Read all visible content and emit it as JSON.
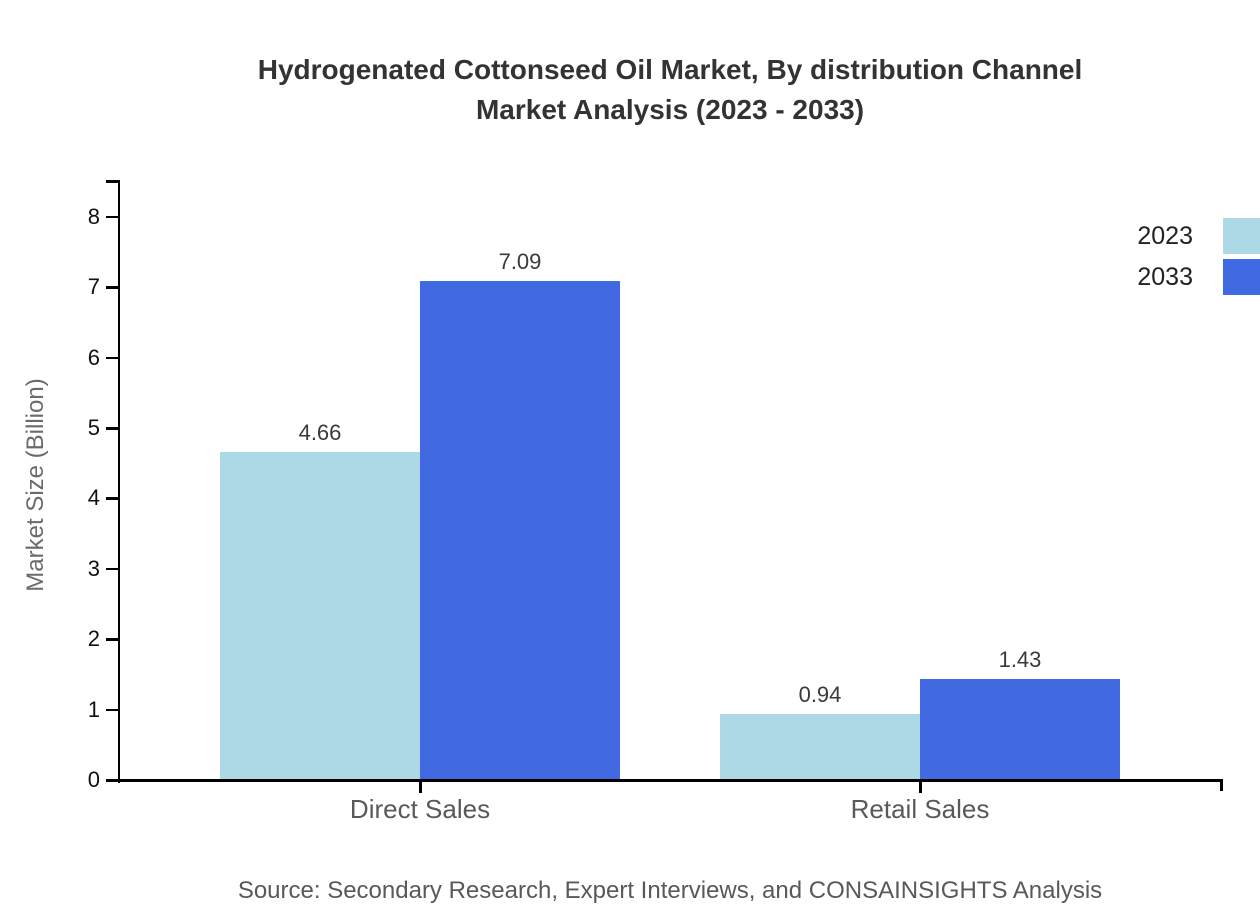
{
  "title": {
    "line1": "Hydrogenated Cottonseed Oil Market, By distribution Channel",
    "line2": "Market Analysis (2023 - 2033)"
  },
  "source": "Source: Secondary Research, Expert Interviews, and CONSAINSIGHTS Analysis",
  "chart_data": {
    "type": "bar",
    "categories": [
      "Direct Sales",
      "Retail Sales"
    ],
    "series": [
      {
        "name": "2023",
        "color": "#add8e6",
        "values": [
          4.66,
          0.94
        ]
      },
      {
        "name": "2033",
        "color": "#4169e1",
        "values": [
          7.09,
          1.43
        ]
      }
    ],
    "title": "Hydrogenated Cottonseed Oil Market, By distribution Channel Market Analysis (2023 - 2033)",
    "xlabel": "",
    "ylabel": "Market Size (Billion)",
    "y_ticks": [
      0,
      1,
      2,
      3,
      4,
      5,
      6,
      7,
      8
    ],
    "ylim": [
      0,
      8.5
    ],
    "grid": false,
    "legend_position": "top-right",
    "value_label_decimals": 2,
    "axis_color": "#000000",
    "text_colors": {
      "title": "#333333",
      "tick_labels": "#111111",
      "category_labels": "#595959",
      "value_labels": "#3a3a3a",
      "axis_title": "#6b6b6b",
      "source": "#595959"
    }
  }
}
